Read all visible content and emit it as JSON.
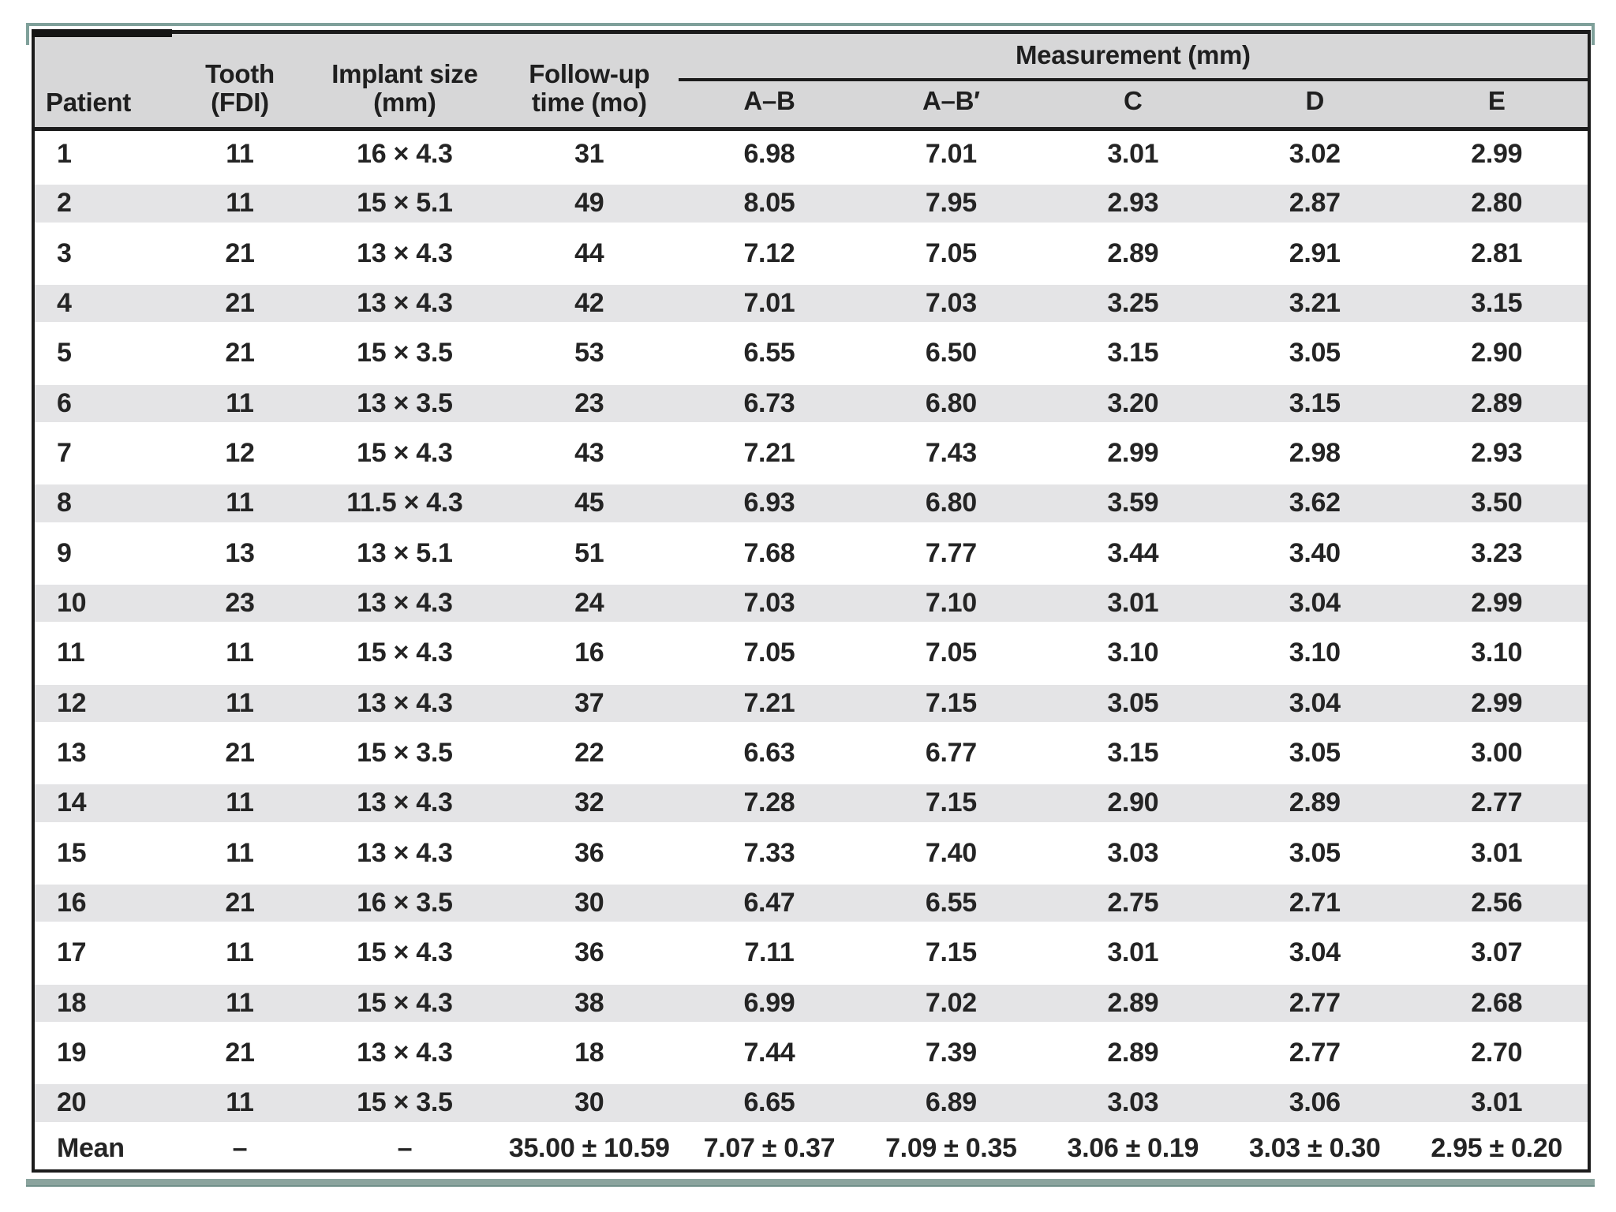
{
  "colors": {
    "accent_teal": "#7fa09a",
    "accent_teal_bottom": "#8ba49e",
    "rule_black": "#1c1c1c",
    "header_gray": "#d7d7d8",
    "band_gray": "#e4e4e6"
  },
  "table": {
    "columns": [
      "Patient",
      "Tooth\n(FDI)",
      "Implant size\n(mm)",
      "Follow-up\ntime (mo)"
    ],
    "measurement_group_label": "Measurement (mm)",
    "measurement_subcolumns": [
      "A–B",
      "A–B′",
      "C",
      "D",
      "E"
    ],
    "rows": [
      [
        "1",
        "11",
        "16 × 4.3",
        "31",
        "6.98",
        "7.01",
        "3.01",
        "3.02",
        "2.99"
      ],
      [
        "2",
        "11",
        "15 × 5.1",
        "49",
        "8.05",
        "7.95",
        "2.93",
        "2.87",
        "2.80"
      ],
      [
        "3",
        "21",
        "13 × 4.3",
        "44",
        "7.12",
        "7.05",
        "2.89",
        "2.91",
        "2.81"
      ],
      [
        "4",
        "21",
        "13 × 4.3",
        "42",
        "7.01",
        "7.03",
        "3.25",
        "3.21",
        "3.15"
      ],
      [
        "5",
        "21",
        "15 × 3.5",
        "53",
        "6.55",
        "6.50",
        "3.15",
        "3.05",
        "2.90"
      ],
      [
        "6",
        "11",
        "13 × 3.5",
        "23",
        "6.73",
        "6.80",
        "3.20",
        "3.15",
        "2.89"
      ],
      [
        "7",
        "12",
        "15 × 4.3",
        "43",
        "7.21",
        "7.43",
        "2.99",
        "2.98",
        "2.93"
      ],
      [
        "8",
        "11",
        "11.5 × 4.3",
        "45",
        "6.93",
        "6.80",
        "3.59",
        "3.62",
        "3.50"
      ],
      [
        "9",
        "13",
        "13 × 5.1",
        "51",
        "7.68",
        "7.77",
        "3.44",
        "3.40",
        "3.23"
      ],
      [
        "10",
        "23",
        "13 × 4.3",
        "24",
        "7.03",
        "7.10",
        "3.01",
        "3.04",
        "2.99"
      ],
      [
        "11",
        "11",
        "15 × 4.3",
        "16",
        "7.05",
        "7.05",
        "3.10",
        "3.10",
        "3.10"
      ],
      [
        "12",
        "11",
        "13 × 4.3",
        "37",
        "7.21",
        "7.15",
        "3.05",
        "3.04",
        "2.99"
      ],
      [
        "13",
        "21",
        "15 × 3.5",
        "22",
        "6.63",
        "6.77",
        "3.15",
        "3.05",
        "3.00"
      ],
      [
        "14",
        "11",
        "13 × 4.3",
        "32",
        "7.28",
        "7.15",
        "2.90",
        "2.89",
        "2.77"
      ],
      [
        "15",
        "11",
        "13 × 4.3",
        "36",
        "7.33",
        "7.40",
        "3.03",
        "3.05",
        "3.01"
      ],
      [
        "16",
        "21",
        "16 × 3.5",
        "30",
        "6.47",
        "6.55",
        "2.75",
        "2.71",
        "2.56"
      ],
      [
        "17",
        "11",
        "15 × 4.3",
        "36",
        "7.11",
        "7.15",
        "3.01",
        "3.04",
        "3.07"
      ],
      [
        "18",
        "11",
        "15 × 4.3",
        "38",
        "6.99",
        "7.02",
        "2.89",
        "2.77",
        "2.68"
      ],
      [
        "19",
        "21",
        "13 × 4.3",
        "18",
        "7.44",
        "7.39",
        "2.89",
        "2.77",
        "2.70"
      ],
      [
        "20",
        "11",
        "15 × 3.5",
        "30",
        "6.65",
        "6.89",
        "3.03",
        "3.06",
        "3.01"
      ]
    ],
    "mean_row": [
      "Mean",
      "–",
      "–",
      "35.00 ± 10.59",
      "7.07 ± 0.37",
      "7.09 ± 0.35",
      "3.06 ± 0.19",
      "3.03 ± 0.30",
      "2.95 ± 0.20"
    ]
  }
}
